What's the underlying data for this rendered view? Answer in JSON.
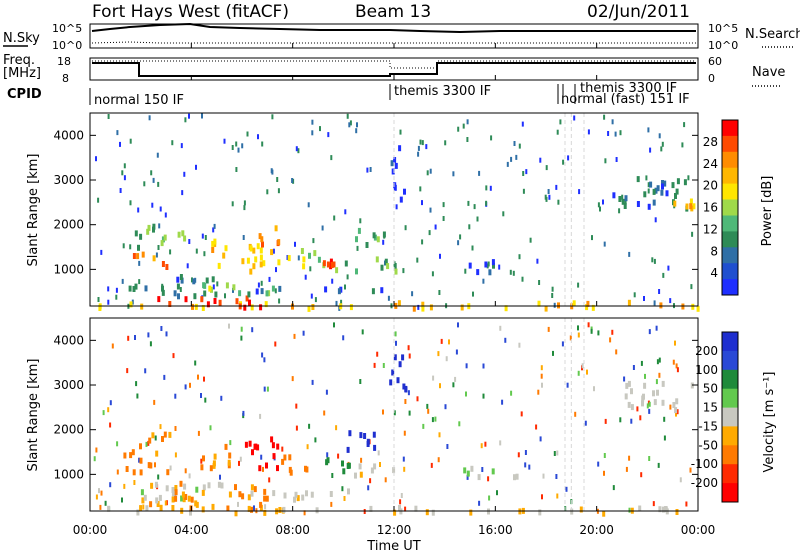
{
  "header": {
    "title": "Fort Hays West (fitACF)",
    "beam": "Beam 13",
    "date": "02/Jun/2011"
  },
  "panels": {
    "sky": {
      "label": "N.Sky",
      "right_label": "N.Search",
      "left_ticks": [
        "10^5",
        "10^0"
      ],
      "right_ticks": [
        "10^5",
        "10^0"
      ]
    },
    "freq": {
      "label_line1": "Freq.",
      "label_line2": "[MHz]",
      "right_label": "Nave",
      "left_ticks": [
        "18",
        "8"
      ],
      "right_ticks": [
        "60",
        "0"
      ]
    },
    "cpid": {
      "label": "CPID",
      "entries": [
        "normal 150 IF",
        "themis 3300 IF",
        "themis 3300 IF",
        "normal (fast) 151 IF"
      ]
    },
    "power": {
      "ylabel": "Slant Range [km]",
      "cbar_label": "Power [dB]",
      "cbar_ticks": [
        "28",
        "24",
        "20",
        "16",
        "12",
        "8",
        "4"
      ],
      "cbar_colors": [
        "#ff0000",
        "#ff4a00",
        "#ff8c00",
        "#ffb700",
        "#ffe600",
        "#9fd94a",
        "#4fb878",
        "#2e8b57",
        "#2f6fa6",
        "#1f4fcf",
        "#1f2fff"
      ]
    },
    "velocity": {
      "ylabel": "Slant Range [km]",
      "cbar_label": "Velocity [m s⁻¹]",
      "cbar_ticks": [
        "200",
        "100",
        "50",
        "15",
        "-15",
        "-50",
        "-100",
        "-200"
      ],
      "cbar_colors": [
        "#1f2fcf",
        "#2a49d6",
        "#1f8a3a",
        "#62c94e",
        "#c8c8c0",
        "#ffaa00",
        "#ff7a00",
        "#ff2a00",
        "#ff0000"
      ]
    }
  },
  "xaxis": {
    "label": "Time UT",
    "ticks": [
      "00:00",
      "04:00",
      "08:00",
      "12:00",
      "16:00",
      "20:00",
      "00:00"
    ]
  },
  "chart_data": [
    {
      "type": "heatmap",
      "title": "Power",
      "xlabel": "Time UT",
      "ylabel": "Slant Range [km]",
      "xlim": [
        0,
        24
      ],
      "ylim": [
        180,
        4500
      ],
      "x_ticks": [
        "00:00",
        "04:00",
        "08:00",
        "12:00",
        "16:00",
        "20:00",
        "00:00"
      ],
      "y_ticks": [
        1000,
        2000,
        3000,
        4000
      ],
      "colorbar": {
        "label": "Power [dB]",
        "ticks": [
          4,
          8,
          12,
          16,
          20,
          24,
          28
        ]
      },
      "regions": [
        {
          "t0": 0.2,
          "t1": 24,
          "r0": 180,
          "r1": 320,
          "value": 20
        },
        {
          "t0": 2.5,
          "t1": 7.5,
          "r0": 200,
          "r1": 430,
          "value": 28
        },
        {
          "t0": 1.5,
          "t1": 5.0,
          "r0": 450,
          "r1": 900,
          "value": 8
        },
        {
          "t0": 3.5,
          "t1": 7.2,
          "r0": 500,
          "r1": 760,
          "value": 14
        },
        {
          "t0": 6.5,
          "t1": 11.5,
          "r0": 500,
          "r1": 650,
          "value": 6
        },
        {
          "t0": 1.6,
          "t1": 3.0,
          "r0": 1100,
          "r1": 1400,
          "value": 24
        },
        {
          "t0": 1.6,
          "t1": 2.6,
          "r0": 1500,
          "r1": 2100,
          "value": 12
        },
        {
          "t0": 2.5,
          "t1": 3.8,
          "r0": 1600,
          "r1": 1900,
          "value": 14
        },
        {
          "t0": 4.6,
          "t1": 5.6,
          "r0": 1100,
          "r1": 1700,
          "value": 20
        },
        {
          "t0": 6.6,
          "t1": 7.5,
          "r0": 1600,
          "r1": 2000,
          "value": 24
        },
        {
          "t0": 5.9,
          "t1": 8.5,
          "r0": 1000,
          "r1": 1600,
          "value": 20
        },
        {
          "t0": 8.3,
          "t1": 9.2,
          "r0": 1100,
          "r1": 1500,
          "value": 16
        },
        {
          "t0": 9.0,
          "t1": 9.7,
          "r0": 1000,
          "r1": 1250,
          "value": 28
        },
        {
          "t0": 9.6,
          "t1": 12.2,
          "r0": 1000,
          "r1": 1300,
          "value": 12
        },
        {
          "t0": 10.0,
          "t1": 11.6,
          "r0": 1600,
          "r1": 2000,
          "value": 12
        },
        {
          "t0": 11.8,
          "t1": 12.5,
          "r0": 2600,
          "r1": 3800,
          "value": 4
        },
        {
          "t0": 14.0,
          "t1": 16.0,
          "r0": 1000,
          "r1": 1250,
          "value": 6
        },
        {
          "t0": 20.5,
          "t1": 23.8,
          "r0": 2400,
          "r1": 3100,
          "value": 8
        },
        {
          "t0": 23.0,
          "t1": 23.8,
          "r0": 2400,
          "r1": 2700,
          "value": 20
        }
      ]
    },
    {
      "type": "heatmap",
      "title": "Velocity",
      "xlabel": "Time UT",
      "ylabel": "Slant Range [km]",
      "xlim": [
        0,
        24
      ],
      "ylim": [
        180,
        4500
      ],
      "x_ticks": [
        "00:00",
        "04:00",
        "08:00",
        "12:00",
        "16:00",
        "20:00",
        "00:00"
      ],
      "y_ticks": [
        1000,
        2000,
        3000,
        4000
      ],
      "colorbar": {
        "label": "Velocity [m s⁻¹]",
        "ticks": [
          200,
          100,
          50,
          15,
          -15,
          -50,
          -100,
          -200
        ]
      },
      "regions": [
        {
          "t0": 0.2,
          "t1": 24,
          "r0": 180,
          "r1": 320,
          "value": -10
        },
        {
          "t0": 1.8,
          "t1": 7.0,
          "r0": 200,
          "r1": 430,
          "value": -40
        },
        {
          "t0": 1.5,
          "t1": 5.5,
          "r0": 450,
          "r1": 900,
          "value": 0
        },
        {
          "t0": 3.2,
          "t1": 7.2,
          "r0": 500,
          "r1": 900,
          "value": -60
        },
        {
          "t0": 6.2,
          "t1": 11.0,
          "r0": 500,
          "r1": 700,
          "value": 0
        },
        {
          "t0": 1.2,
          "t1": 3.2,
          "r0": 1100,
          "r1": 1600,
          "value": -60
        },
        {
          "t0": 1.8,
          "t1": 3.2,
          "r0": 1600,
          "r1": 2000,
          "value": -60
        },
        {
          "t0": 4.0,
          "t1": 5.5,
          "r0": 1200,
          "r1": 1800,
          "value": -60
        },
        {
          "t0": 6.0,
          "t1": 7.5,
          "r0": 1100,
          "r1": 1900,
          "value": -250
        },
        {
          "t0": 7.5,
          "t1": 9.0,
          "r0": 1100,
          "r1": 1500,
          "value": -60
        },
        {
          "t0": 9.0,
          "t1": 10.2,
          "r0": 1100,
          "r1": 1400,
          "value": 60
        },
        {
          "t0": 9.8,
          "t1": 11.5,
          "r0": 1600,
          "r1": 2000,
          "value": 250
        },
        {
          "t0": 9.8,
          "t1": 12.0,
          "r0": 1000,
          "r1": 1250,
          "value": 0
        },
        {
          "t0": 11.8,
          "t1": 12.5,
          "r0": 2600,
          "r1": 3800,
          "value": 250
        },
        {
          "t0": 14.0,
          "t1": 17.0,
          "r0": 1000,
          "r1": 1200,
          "value": 0
        },
        {
          "t0": 21.0,
          "t1": 23.8,
          "r0": 2500,
          "r1": 3100,
          "value": 0
        }
      ]
    }
  ]
}
